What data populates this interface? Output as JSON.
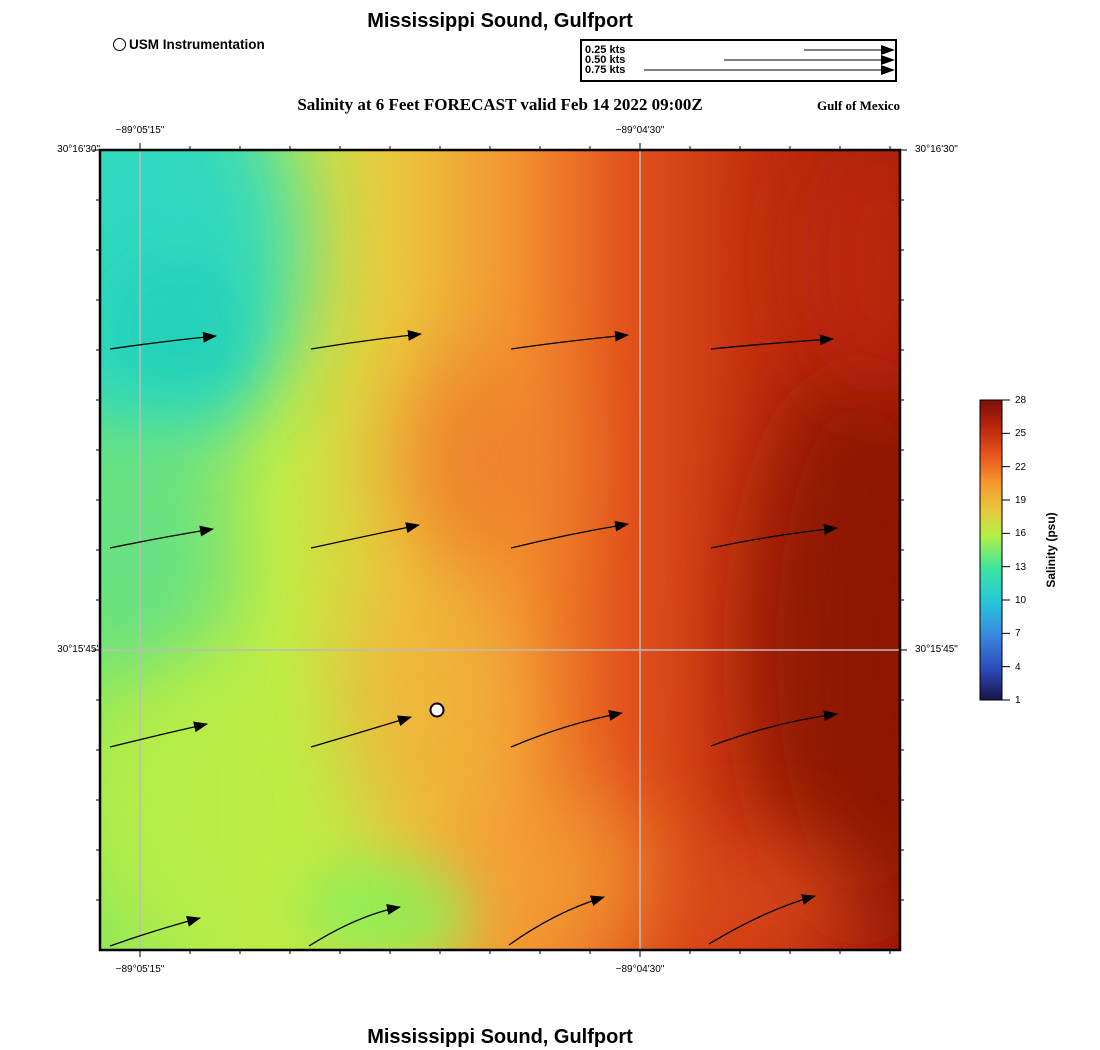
{
  "header": {
    "title": "Mississippi Sound, Gulfport",
    "subtitle": "Salinity at 6 Feet FORECAST valid Feb 14 2022 09:00Z",
    "region": "Gulf of Mexico",
    "marker_legend": "USM Instrumentation"
  },
  "speed_legend": {
    "labels": [
      "0.25 kts",
      "0.50 kts",
      "0.75 kts"
    ],
    "speeds_kts": [
      0.25,
      0.5,
      0.75
    ]
  },
  "axes": {
    "lon_labels": [
      "−89°05'15\"",
      "−89°04'30\""
    ],
    "lat_labels": [
      "30°16'30\"",
      "30°15'45\""
    ]
  },
  "colorbar": {
    "title": "Salinity (psu)",
    "ticks": [
      "28",
      "25",
      "22",
      "19",
      "16",
      "13",
      "10",
      "7",
      "4",
      "1"
    ],
    "min": 1,
    "max": 28,
    "colors": [
      "#1a1448",
      "#2d49b8",
      "#3a8ae0",
      "#26c7d8",
      "#3ee6a0",
      "#b5f044",
      "#e8c83e",
      "#f59a2e",
      "#e8521c",
      "#b4220c",
      "#7a1008"
    ]
  },
  "footer": {
    "title": "Mississippi Sound, Gulfport"
  },
  "colors": {
    "cyan_low": "#24d6c4",
    "green_mid": "#a8ee48",
    "yellow_mid": "#e9c83e",
    "orange_mid": "#ef8a2a",
    "red_high": "#c8290c",
    "dark_red": "#8e1206",
    "grid_line": "#bcbcbc"
  }
}
